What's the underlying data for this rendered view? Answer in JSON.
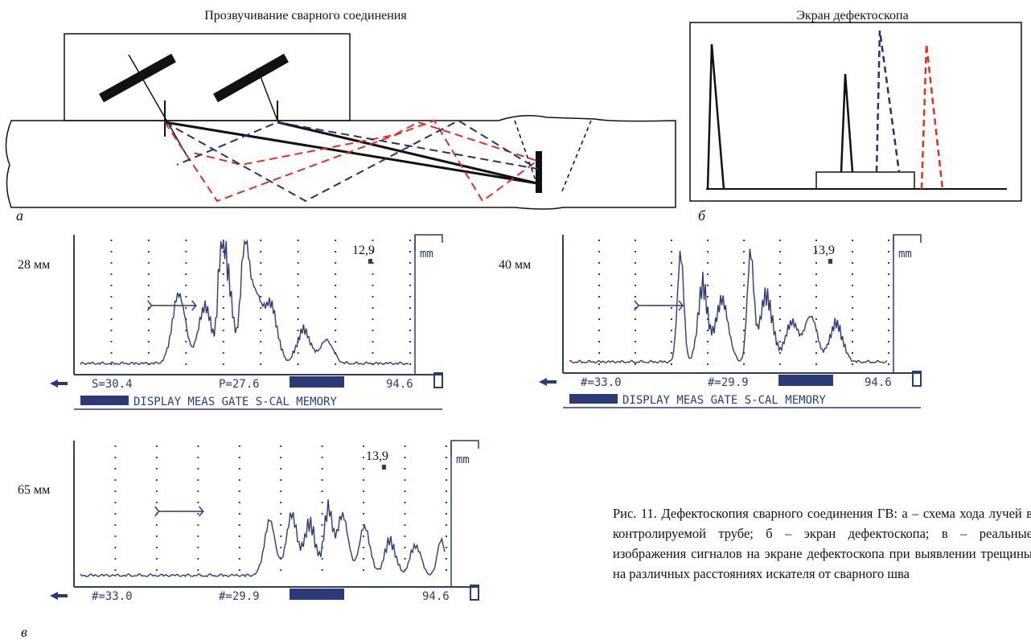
{
  "figure": {
    "panel_a": {
      "title": "Прозвучивание сварного соединения",
      "label": "а"
    },
    "panel_b": {
      "title": "Экран дефектоскопа",
      "label": "б"
    },
    "panel_c": {
      "label": "в",
      "scans": [
        {
          "distance": "28 мм",
          "reading": "12,9",
          "unit": "mm",
          "status": [
            "S=30.4",
            "P=27.6",
            "94.6"
          ],
          "menu": "DISPLAY MEAS GATE S-CAL MEMORY"
        },
        {
          "distance": "40 мм",
          "reading": "13,9",
          "unit": "mm",
          "status": [
            "#=33.0",
            "#=29.9",
            "94.6"
          ],
          "menu": "DISPLAY MEAS GATE S-CAL MEMORY"
        },
        {
          "distance": "65 мм",
          "reading": "13,9",
          "unit": "mm",
          "status": [
            "#=33.0",
            "#=29.9",
            "94.6"
          ]
        }
      ]
    },
    "caption": "Рис. 11. Дефектоскопия сварного соединения ГВ: а – схема хода лучей в контролируемой трубе; б – экран дефектоскопа; в – реальные изображения сигналов на экране дефектоскопа при выявлении трещины на различных расстояниях искателя от сварного шва"
  }
}
